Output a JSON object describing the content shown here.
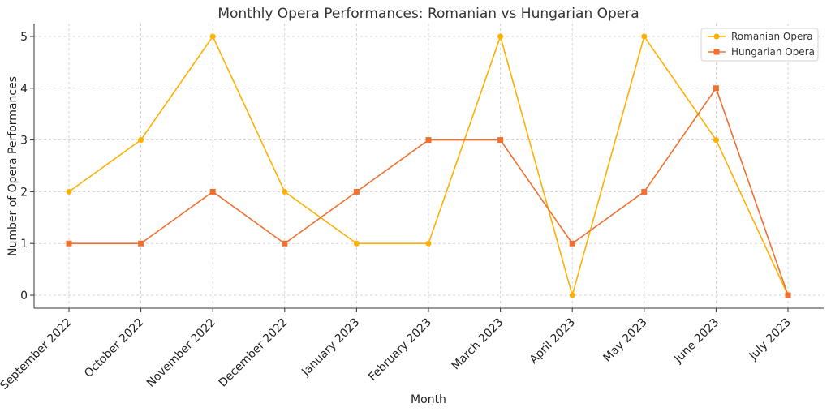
{
  "chart_data": {
    "type": "line",
    "title": "Monthly Opera Performances: Romanian vs Hungarian Opera",
    "xlabel": "Month",
    "ylabel": "Number of Opera Performances",
    "categories": [
      "September 2022",
      "October 2022",
      "November 2022",
      "December 2022",
      "January 2023",
      "February 2023",
      "March 2023",
      "April 2023",
      "May 2023",
      "June 2023",
      "July 2023"
    ],
    "yticks": [
      0,
      1,
      2,
      3,
      4,
      5
    ],
    "ylim": [
      -0.25,
      5.25
    ],
    "grid": true,
    "legend_position": "top-right",
    "series": [
      {
        "name": "Romanian Opera",
        "color": "#FFB000",
        "marker": "circle",
        "values": [
          2,
          3,
          5,
          2,
          1,
          1,
          5,
          0,
          5,
          3,
          0
        ]
      },
      {
        "name": "Hungarian Opera",
        "color": "#F07030",
        "marker": "square",
        "values": [
          1,
          1,
          2,
          1,
          2,
          3,
          3,
          1,
          2,
          4,
          0
        ]
      }
    ]
  }
}
